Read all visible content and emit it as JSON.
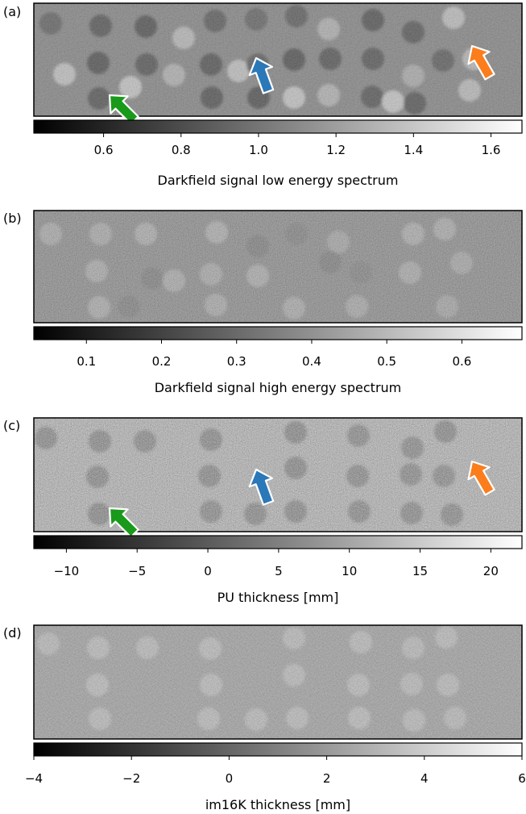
{
  "panels": [
    {
      "letter": "(a)",
      "colorbar_label": "Darkfield signal low energy spectrum",
      "cmin": 0.42,
      "cmax": 1.68,
      "ticks": [
        "0.6",
        "0.8",
        "1.0",
        "1.2",
        "1.4",
        "1.6"
      ],
      "tick_values": [
        0.6,
        0.8,
        1.0,
        1.2,
        1.4,
        1.6
      ],
      "arrows": [
        {
          "name": "green",
          "color": "#1a9a1a"
        },
        {
          "name": "blue",
          "color": "#2a78b8"
        },
        {
          "name": "orange",
          "color": "#fb7d1c"
        }
      ]
    },
    {
      "letter": "(b)",
      "colorbar_label": "Darkfield signal high energy spectrum",
      "cmin": 0.03,
      "cmax": 0.68,
      "ticks": [
        "0.1",
        "0.2",
        "0.3",
        "0.4",
        "0.5",
        "0.6"
      ],
      "tick_values": [
        0.1,
        0.2,
        0.3,
        0.4,
        0.5,
        0.6
      ],
      "arrows": []
    },
    {
      "letter": "(c)",
      "colorbar_label": "PU thickness  [mm]",
      "cmin": -12.3,
      "cmax": 22.2,
      "ticks": [
        "−10",
        "−5",
        "0",
        "5",
        "10",
        "15",
        "20"
      ],
      "tick_values": [
        -10,
        -5,
        0,
        5,
        10,
        15,
        20
      ],
      "arrows": [
        {
          "name": "green",
          "color": "#1a9a1a"
        },
        {
          "name": "blue",
          "color": "#2a78b8"
        },
        {
          "name": "orange",
          "color": "#fb7d1c"
        }
      ]
    },
    {
      "letter": "(d)",
      "colorbar_label": "im16K thickness  [mm]",
      "cmin": -4,
      "cmax": 6,
      "ticks": [
        "−4",
        "−2",
        "0",
        "2",
        "4",
        "6"
      ],
      "tick_values": [
        -4,
        -2,
        0,
        2,
        4,
        6
      ],
      "arrows": []
    }
  ]
}
